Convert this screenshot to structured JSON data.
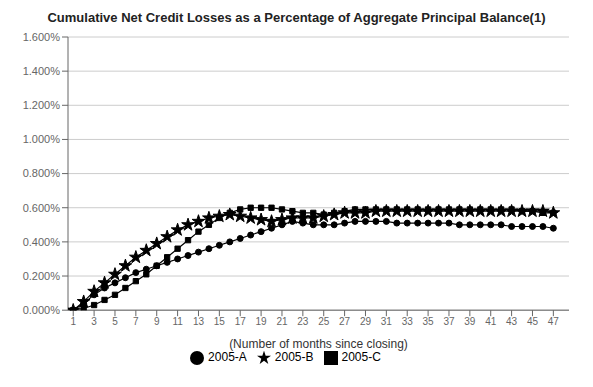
{
  "chart_data": {
    "type": "line",
    "title": "Cumulative Net Credit Losses as a Percentage of Aggregate Principal Balance(1)",
    "xlabel": "(Number of months since closing)",
    "x": [
      1,
      2,
      3,
      4,
      5,
      6,
      7,
      8,
      9,
      10,
      11,
      12,
      13,
      14,
      15,
      16,
      17,
      18,
      19,
      20,
      21,
      22,
      23,
      24,
      25,
      26,
      27,
      28,
      29,
      30,
      31,
      32,
      33,
      34,
      35,
      36,
      37,
      38,
      39,
      40,
      41,
      42,
      43,
      44,
      45,
      46,
      47
    ],
    "xlim": [
      0.5,
      48.5
    ],
    "xticks": [
      1,
      3,
      5,
      7,
      9,
      11,
      13,
      15,
      17,
      19,
      21,
      23,
      25,
      27,
      29,
      31,
      33,
      35,
      37,
      39,
      41,
      43,
      45,
      47
    ],
    "ylim": [
      0.0,
      0.016
    ],
    "yticks": [
      {
        "value": 0.0,
        "label": "0.000%"
      },
      {
        "value": 0.002,
        "label": "0.200%"
      },
      {
        "value": 0.004,
        "label": "0.400%"
      },
      {
        "value": 0.006,
        "label": "0.600%"
      },
      {
        "value": 0.008,
        "label": "0.800%"
      },
      {
        "value": 0.01,
        "label": "1.000%"
      },
      {
        "value": 0.012,
        "label": "1.200%"
      },
      {
        "value": 0.014,
        "label": "1.400%"
      },
      {
        "value": 0.016,
        "label": "1.600%"
      }
    ],
    "grid": true,
    "legend": "bottom",
    "series": [
      {
        "name": "2005-A",
        "color": "#000000",
        "marker": "circle",
        "values": [
          0.0,
          0.0004,
          0.0009,
          0.0013,
          0.0016,
          0.0019,
          0.0022,
          0.0024,
          0.0026,
          0.0028,
          0.003,
          0.0032,
          0.0034,
          0.0036,
          0.0038,
          0.004,
          0.0042,
          0.0044,
          0.0046,
          0.0048,
          0.005,
          0.0052,
          0.0051,
          0.005,
          0.005,
          0.005,
          0.0051,
          0.0052,
          0.0052,
          0.0052,
          0.0052,
          0.0051,
          0.0051,
          0.0051,
          0.0051,
          0.0051,
          0.0051,
          0.005,
          0.005,
          0.005,
          0.005,
          0.005,
          0.0049,
          0.0049,
          0.0049,
          0.0049,
          0.0048
        ]
      },
      {
        "name": "2005-B",
        "color": "#000000",
        "marker": "star",
        "values": [
          0.0,
          0.0005,
          0.0011,
          0.0016,
          0.0021,
          0.0026,
          0.0031,
          0.0035,
          0.0039,
          0.0043,
          0.0047,
          0.005,
          0.0052,
          0.0054,
          0.0055,
          0.0056,
          0.0055,
          0.0054,
          0.0053,
          0.0052,
          0.0053,
          0.0054,
          0.0054,
          0.0054,
          0.0055,
          0.0056,
          0.0057,
          0.0057,
          0.0057,
          0.0058,
          0.0058,
          0.0058,
          0.0058,
          0.0058,
          0.0058,
          0.0058,
          0.0058,
          0.0058,
          0.0058,
          0.0058,
          0.0058,
          0.0058,
          0.0058,
          0.0058,
          0.0058,
          0.0058,
          0.0057
        ]
      },
      {
        "name": "2005-C",
        "color": "#000000",
        "marker": "square",
        "values": [
          0.0,
          0.0001,
          0.0003,
          0.0006,
          0.0009,
          0.0013,
          0.0017,
          0.0021,
          0.0026,
          0.0031,
          0.0036,
          0.0041,
          0.0046,
          0.005,
          0.0054,
          0.0057,
          0.0059,
          0.006,
          0.006,
          0.006,
          0.0059,
          0.0058,
          0.0057,
          0.0057,
          0.0056,
          0.0057,
          0.0058,
          0.0059,
          0.0059,
          0.0059,
          0.0059,
          0.0059,
          0.0059,
          0.0059,
          0.0059,
          0.0059,
          0.0059,
          0.0059,
          0.0059,
          0.0059,
          0.0059,
          0.0059,
          0.0059,
          0.0058,
          0.0058,
          0.0057,
          0.0057
        ]
      }
    ]
  }
}
